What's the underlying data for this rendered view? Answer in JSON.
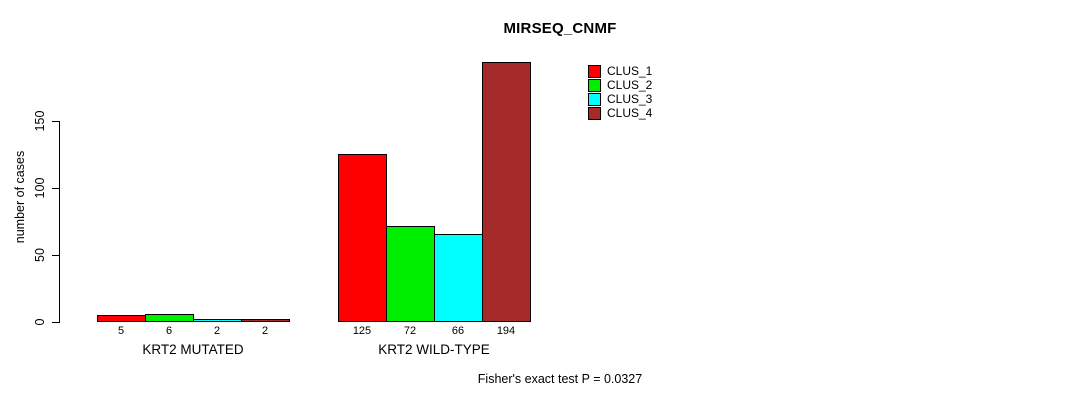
{
  "chart_data": {
    "type": "bar",
    "title": "MIRSEQ_CNMF",
    "ylabel": "number of cases",
    "xlabel": "",
    "yticks": [
      0,
      50,
      100,
      150
    ],
    "ylim": [
      0,
      195
    ],
    "grid": false,
    "legend_position": "top-right",
    "categories": [
      "KRT2 MUTATED",
      "KRT2 WILD-TYPE"
    ],
    "series": [
      {
        "name": "CLUS_1",
        "color": "#ff0000",
        "values": [
          5,
          125
        ]
      },
      {
        "name": "CLUS_2",
        "color": "#00ee00",
        "values": [
          6,
          72
        ]
      },
      {
        "name": "CLUS_3",
        "color": "#00ffff",
        "values": [
          2,
          66
        ]
      },
      {
        "name": "CLUS_4",
        "color": "#a52a2a",
        "values": [
          2,
          194
        ]
      }
    ],
    "bar_value_labels_shown": true,
    "axis_color": "#000000",
    "bar_border_color": "#000000",
    "annotation": "Fisher's exact test P = 0.0327"
  }
}
